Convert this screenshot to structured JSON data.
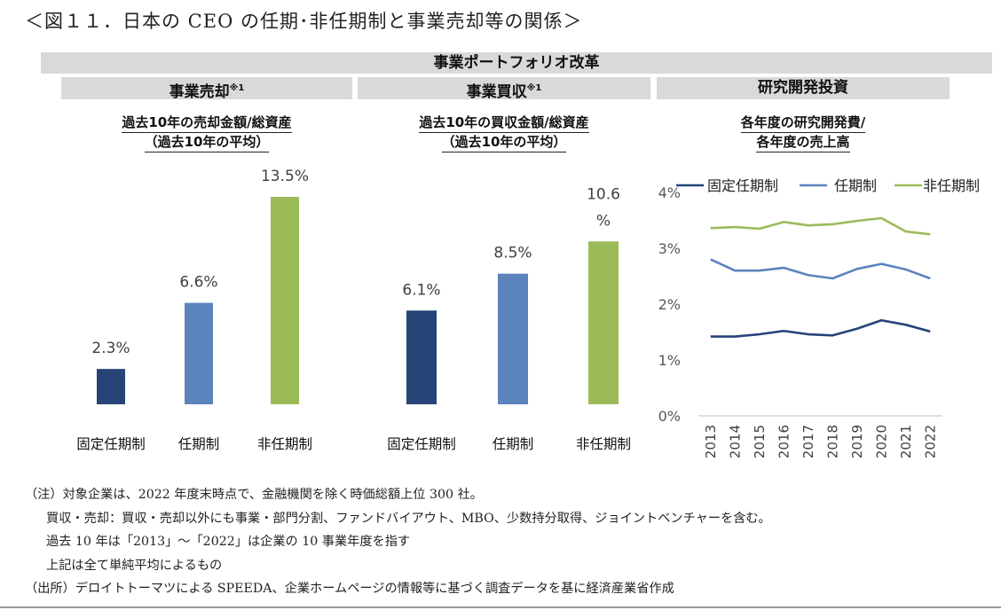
{
  "figure_title": "＜図１１．日本の CEO の任期･非任期制と事業売却等の関係＞",
  "header": "事業ポートフォリオ改革",
  "panels": [
    {
      "heading": "事業売却",
      "mark": "※1",
      "subtitle_line1": "過去10年の売却金額/総資産",
      "subtitle_line2": "（過去10年の平均）"
    },
    {
      "heading": "事業買収",
      "mark": "※1",
      "subtitle_line1": "過去10年の買収金額/総資産",
      "subtitle_line2": "（過去10年の平均）"
    },
    {
      "heading": "研究開発投資",
      "mark": "",
      "subtitle_line1": "各年度の研究開発費/",
      "subtitle_line2": "各年度の売上高"
    }
  ],
  "colors": {
    "fixed_term": "#264478",
    "term": "#5b84bd",
    "no_term": "#9bbb59"
  },
  "chart_data": [
    {
      "type": "bar",
      "categories": [
        "固定任期制",
        "任期制",
        "非任期制"
      ],
      "values": [
        2.3,
        6.6,
        13.5
      ],
      "value_labels": [
        "2.3%",
        "6.6%",
        "13.5%"
      ],
      "ylim": [
        0,
        15
      ]
    },
    {
      "type": "bar",
      "categories": [
        "固定任期制",
        "任期制",
        "非任期制"
      ],
      "values": [
        6.1,
        8.5,
        10.6
      ],
      "value_labels": [
        "6.1%",
        "8.5%",
        "10.6\n%"
      ],
      "ylim": [
        0,
        15
      ]
    },
    {
      "type": "line",
      "x": [
        "2013",
        "2014",
        "2015",
        "2016",
        "2017",
        "2018",
        "2019",
        "2020",
        "2021",
        "2022"
      ],
      "series": [
        {
          "name": "固定任期制",
          "values": [
            1.42,
            1.42,
            1.46,
            1.52,
            1.46,
            1.44,
            1.56,
            1.71,
            1.63,
            1.51
          ]
        },
        {
          "name": "任期制",
          "values": [
            2.8,
            2.6,
            2.6,
            2.65,
            2.52,
            2.46,
            2.63,
            2.72,
            2.62,
            2.46
          ]
        },
        {
          "name": "非任期制",
          "values": [
            3.36,
            3.38,
            3.35,
            3.47,
            3.41,
            3.43,
            3.49,
            3.54,
            3.3,
            3.25
          ]
        }
      ],
      "yticks": [
        "0%",
        "1%",
        "2%",
        "3%",
        "4%"
      ],
      "ylim": [
        0,
        4
      ],
      "legend": "top"
    }
  ],
  "notes": [
    "（注）対象企業は、2022 年度末時点で、金融機関を除く時価総額上位 300 社。",
    "買収・売却：買収・売却以外にも事業・部門分割、ファンドバイアウト、MBO、少数持分取得、ジョイントベンチャーを含む。",
    "過去 10 年は「2013」～「2022」は企業の 10 事業年度を指す",
    "上記は全て単純平均によるもの",
    "（出所）デロイトトーマツによる SPEEDA、企業ホームページの情報等に基づく調査データを基に経済産業省作成"
  ]
}
